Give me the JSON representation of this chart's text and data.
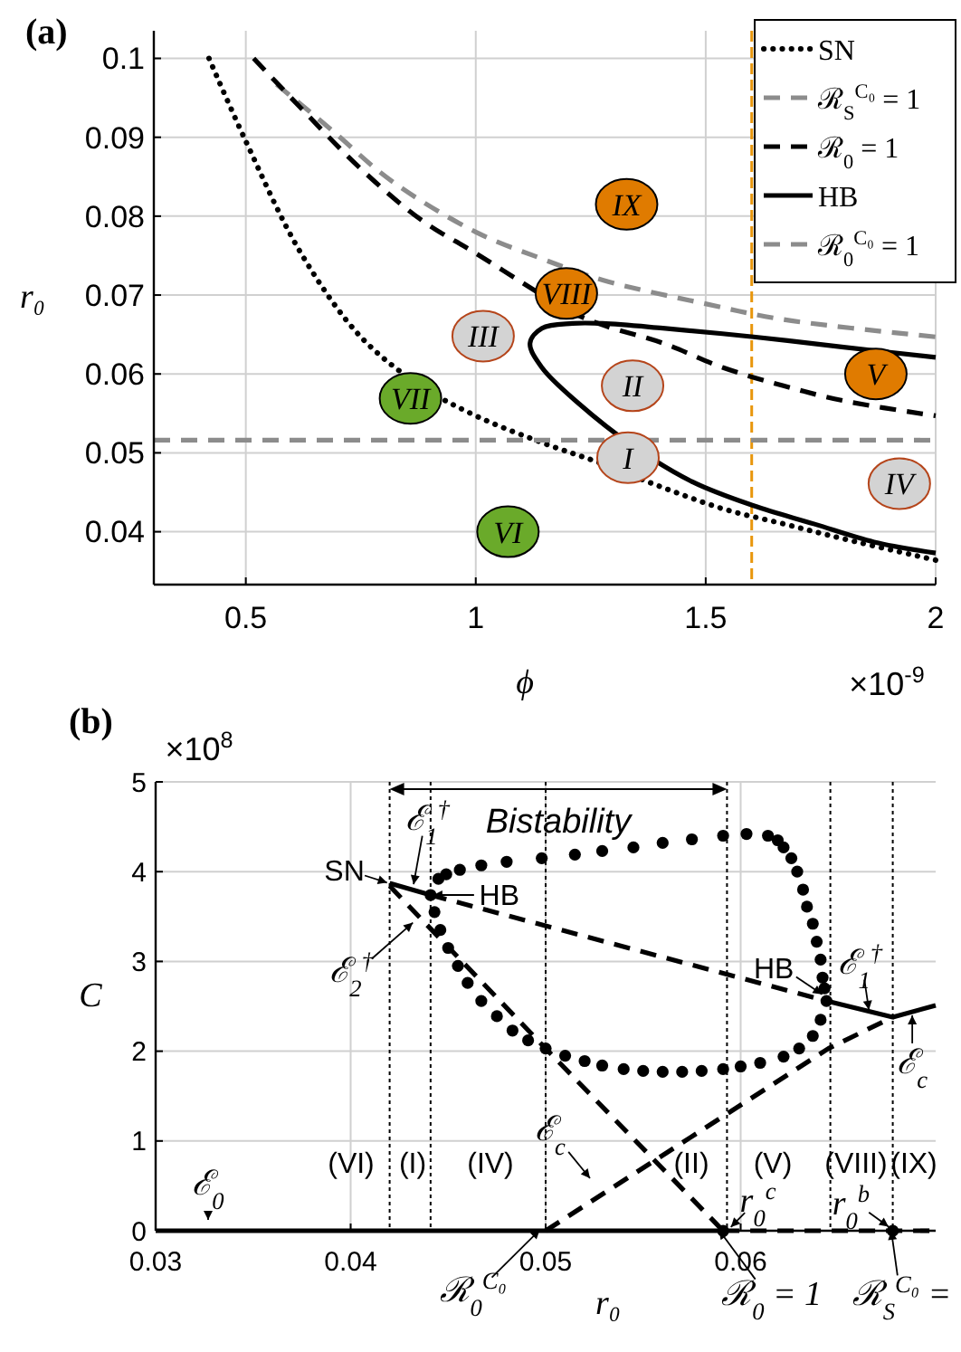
{
  "chart_data": [
    {
      "type": "line",
      "title": "(a)",
      "xlabel": "ϕ",
      "ylabel": "r₀",
      "xlim": [
        0.3,
        2
      ],
      "ylim": [
        0.0333,
        0.1035
      ],
      "xticks": [
        0.5,
        1,
        1.5,
        2
      ],
      "yticks": [
        0.04,
        0.05,
        0.06,
        0.07,
        0.08,
        0.09,
        0.1
      ],
      "grid": true,
      "legend": "top right",
      "series": [
        {
          "name": "SN",
          "color": "#000000",
          "line_style": "dotted",
          "x": [
            0.42,
            0.5,
            0.62,
            0.75,
            0.88,
            1.0,
            1.144,
            1.276,
            1.407,
            1.538,
            1.669,
            1.8,
            2.0
          ],
          "values": [
            0.1,
            0.0895,
            0.0753,
            0.0647,
            0.0585,
            0.0547,
            0.0513,
            0.0486,
            0.0456,
            0.0429,
            0.041,
            0.0391,
            0.0364
          ]
        },
        {
          "name": "ℛ$_{S}$$^{C₀}$ = 1",
          "color": "#8c8c8c",
          "line_style": "dashed",
          "x": [
            0.567,
            0.685,
            0.816,
            1.0,
            1.144,
            1.276,
            1.499,
            1.669,
            2.0
          ],
          "values": [
            0.0967,
            0.091,
            0.0845,
            0.078,
            0.0746,
            0.0719,
            0.0689,
            0.0669,
            0.0647
          ]
        },
        {
          "name": "ℛ$_{0}$ = 1",
          "color": "#000000",
          "line_style": "dashed",
          "x": [
            0.517,
            0.62,
            0.75,
            0.882,
            1.0,
            1.144,
            1.197,
            1.276,
            1.407,
            1.538,
            1.669,
            1.8,
            2.0
          ],
          "values": [
            0.1,
            0.0937,
            0.086,
            0.0795,
            0.0753,
            0.07,
            0.0681,
            0.0662,
            0.0639,
            0.0608,
            0.0585,
            0.0566,
            0.0547
          ]
        },
        {
          "name": "HB",
          "color": "#000000",
          "line_style": "solid",
          "x": [
            2.0,
            1.8,
            1.604,
            1.407,
            1.276,
            1.21,
            1.144,
            1.118,
            1.144,
            1.223,
            1.341,
            1.472,
            1.604,
            1.735,
            1.866,
            2.0
          ],
          "values": [
            0.0621,
            0.0634,
            0.0647,
            0.0658,
            0.0664,
            0.0664,
            0.0658,
            0.0639,
            0.0608,
            0.0563,
            0.0509,
            0.0463,
            0.0433,
            0.041,
            0.0387,
            0.0373
          ]
        },
        {
          "name": "ℛ$_{0}$$^{C₀}$ = 1",
          "color": "#8c8c8c",
          "line_style": "dashed",
          "x": [
            0.3,
            2.0
          ],
          "values": [
            0.0516,
            0.0516
          ]
        },
        {
          "type": "scatter",
          "marker": "circle",
          "x": [
            1.328,
            1.197,
            1.87,
            1.016,
            1.341,
            1.331,
            1.921,
            0.858,
            1.07
          ],
          "values": [
            0.0815,
            0.0702,
            0.06,
            0.0648,
            0.0585,
            0.0494,
            0.0461,
            0.0569,
            0.04
          ],
          "colors": [
            "#e07b00",
            "#e07b00",
            "#e07b00",
            "#d3d3d3",
            "#d3d3d3",
            "#d3d3d3",
            "#d3d3d3",
            "#6aaa2a",
            "#6aaa2a"
          ],
          "value_labels": [
            "IX",
            "VIII",
            "V",
            "III",
            "II",
            "I",
            "IV",
            "VII",
            "VI"
          ]
        }
      ],
      "ref_lines": [
        {
          "axis": "x",
          "value": 1.6,
          "color": "#e8960c",
          "line_style": "dashed"
        }
      ],
      "annotations": [
        "×10$^{-9}$"
      ]
    },
    {
      "type": "line",
      "title": "(b)",
      "xlabel": "r₀",
      "ylabel": "C",
      "xlim": [
        0.03,
        0.07
      ],
      "ylim": [
        0,
        5
      ],
      "xticks": [
        0.03,
        0.04,
        0.05,
        0.06
      ],
      "yticks": [
        0,
        1,
        2,
        3,
        4,
        5
      ],
      "grid": true,
      "series": [
        {
          "color": "#000000",
          "line_style": "solid",
          "x": [
            0.03,
            0.0591
          ],
          "values": [
            0,
            0
          ]
        },
        {
          "color": "#000000",
          "line_style": "dashed",
          "x": [
            0.0591,
            0.07
          ],
          "values": [
            0,
            0
          ]
        },
        {
          "color": "#000000",
          "line_style": "solid",
          "x": [
            0.042,
            0.0441
          ],
          "values": [
            3.87,
            3.74
          ]
        },
        {
          "color": "#000000",
          "line_style": "dashed",
          "x": [
            0.0441,
            0.0644
          ],
          "values": [
            3.74,
            2.56
          ]
        },
        {
          "color": "#000000",
          "line_style": "solid",
          "x": [
            0.0644,
            0.0678,
            0.07
          ],
          "values": [
            2.56,
            2.38,
            2.51
          ]
        },
        {
          "color": "#000000",
          "line_style": "dashed",
          "x": [
            0.042,
            0.05,
            0.0591
          ],
          "values": [
            3.84,
            2.03,
            0
          ]
        },
        {
          "color": "#000000",
          "line_style": "dashed",
          "x": [
            0.05,
            0.0645,
            0.0678
          ],
          "values": [
            0,
            2.03,
            2.38
          ]
        },
        {
          "type": "scatter",
          "marker": "circle",
          "color": "#000000",
          "x": [
            0.0445,
            0.0449,
            0.0456,
            0.0467,
            0.048,
            0.0498,
            0.0515,
            0.0529,
            0.0545,
            0.056,
            0.0575,
            0.0591,
            0.0603,
            0.0614,
            0.0619,
            0.0622,
            0.0626,
            0.0629,
            0.0632,
            0.0634,
            0.0637,
            0.0639,
            0.0641,
            0.0642,
            0.0643
          ],
          "values": [
            3.92,
            3.97,
            4.02,
            4.07,
            4.11,
            4.15,
            4.19,
            4.23,
            4.27,
            4.32,
            4.36,
            4.4,
            4.42,
            4.4,
            4.35,
            4.27,
            4.15,
            4.0,
            3.8,
            3.61,
            3.42,
            3.22,
            3.02,
            2.82,
            2.7
          ]
        },
        {
          "type": "scatter",
          "marker": "circle",
          "color": "#000000",
          "x": [
            0.0441,
            0.0443,
            0.0446,
            0.045,
            0.0455,
            0.046,
            0.0467,
            0.0475,
            0.0483,
            0.0491,
            0.05,
            0.051,
            0.052,
            0.0529,
            0.054,
            0.055,
            0.056,
            0.057,
            0.058,
            0.0591,
            0.06,
            0.061,
            0.0622,
            0.063,
            0.0637,
            0.0641,
            0.0644
          ],
          "values": [
            3.74,
            3.55,
            3.35,
            3.15,
            2.95,
            2.76,
            2.56,
            2.39,
            2.23,
            2.12,
            2.03,
            1.95,
            1.89,
            1.84,
            1.8,
            1.78,
            1.77,
            1.77,
            1.78,
            1.8,
            1.83,
            1.87,
            1.94,
            2.03,
            2.17,
            2.35,
            2.56
          ]
        },
        {
          "type": "scatter",
          "marker": "circle",
          "color": "#000000",
          "x": [
            0.0591,
            0.0678
          ],
          "values": [
            0,
            0
          ]
        }
      ],
      "ref_lines": [
        {
          "axis": "x",
          "value": 0.042,
          "line_style": "dotted"
        },
        {
          "axis": "x",
          "value": 0.0441,
          "line_style": "dotted"
        },
        {
          "axis": "x",
          "value": 0.05,
          "line_style": "dotted"
        },
        {
          "axis": "x",
          "value": 0.0593,
          "line_style": "dotted"
        },
        {
          "axis": "x",
          "value": 0.0646,
          "line_style": "dotted"
        },
        {
          "axis": "x",
          "value": 0.0678,
          "line_style": "dotted"
        }
      ],
      "annotations": [
        {
          "text": "SN",
          "x": 0.042,
          "y": 3.87
        },
        {
          "text": "ℰ$_{1}$$^{†}$",
          "x": 0.0432,
          "y": 3.83
        },
        {
          "text": "HB",
          "x": 0.0441,
          "y": 3.74
        },
        {
          "text": "ℰ$_{2}$$^{†}$",
          "x": 0.0433,
          "y": 3.45
        },
        {
          "text": "HB",
          "x": 0.0643,
          "y": 2.62
        },
        {
          "text": "ℰ$_{1}$$^{†}$",
          "x": 0.0666,
          "y": 2.43
        },
        {
          "text": "ℰ$_{c}$",
          "x": 0.0688,
          "y": 2.43
        },
        {
          "text": "r$_{0}$$^{c}$",
          "x": 0.0594,
          "y": 0.02
        },
        {
          "text": "r$_{0}$$^{b}$",
          "x": 0.0677,
          "y": 0.03
        },
        {
          "text": "ℛ$_{0}$$^{C₀}$",
          "x": 0.0498,
          "y": 0.03
        },
        {
          "text": "ℛ$_{0}$ = 1",
          "x": 0.0588,
          "y": 0.03
        },
        {
          "text": "ℛ$_{S}$$^{C₀}$ =",
          "x": 0.0677,
          "y": 0.03
        },
        "ℰ$_{c}$",
        "ℰ$_{0}$",
        "Bistability",
        "(VI)",
        "(I)",
        "(IV)",
        "(II)",
        "(V)",
        "(VIII)",
        "(IX)",
        "×10$^{8}$"
      ]
    }
  ]
}
